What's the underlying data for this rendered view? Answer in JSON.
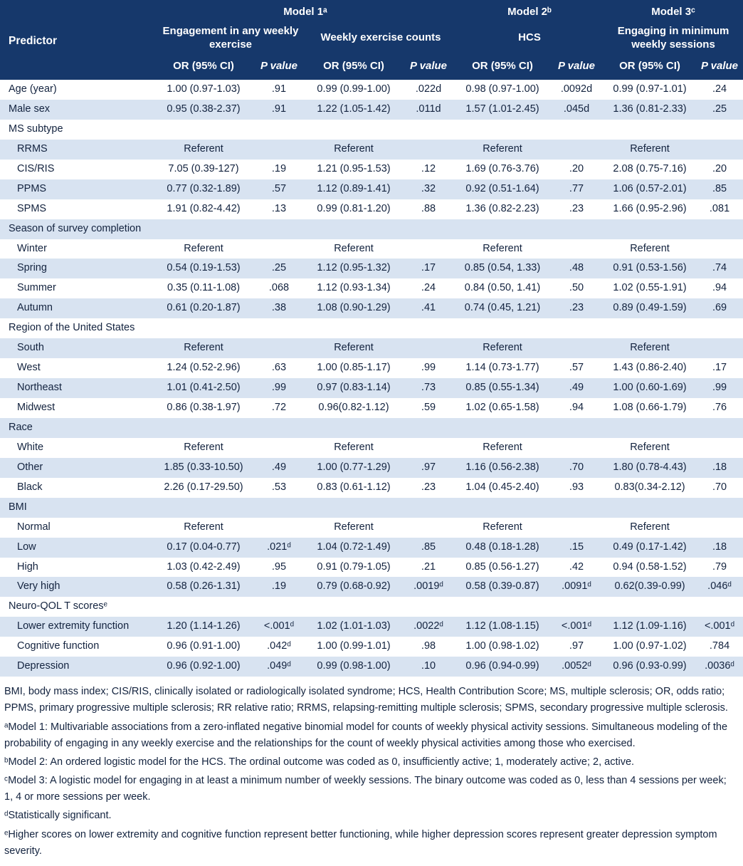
{
  "table": {
    "header": {
      "predictor_label": "Predictor",
      "models": [
        "Model 1ᵃ",
        "Model 2ᵇ",
        "Model 3ᶜ"
      ],
      "outcomes": [
        "Engagement in any weekly exercise",
        "Weekly exercise counts",
        "HCS",
        "Engaging in minimum weekly sessions"
      ],
      "or_label": "OR (95% CI)",
      "p_label": "P value"
    },
    "rows": [
      {
        "label": "Age (year)",
        "section": false,
        "indent": false,
        "cells": [
          "1.00 (0.97-1.03)",
          ".91",
          "0.99 (0.99-1.00)",
          ".022d",
          "0.98 (0.97-1.00)",
          ".0092d",
          "0.99 (0.97-1.01)",
          ".24"
        ]
      },
      {
        "label": "Male sex",
        "section": false,
        "indent": false,
        "cells": [
          "0.95 (0.38-2.37)",
          ".91",
          "1.22 (1.05-1.42)",
          ".011d",
          "1.57 (1.01-2.45)",
          ".045d",
          "1.36 (0.81-2.33)",
          ".25"
        ]
      },
      {
        "label": "MS subtype",
        "section": true,
        "indent": false,
        "cells": null
      },
      {
        "label": "RRMS",
        "section": false,
        "indent": true,
        "cells": [
          "Referent",
          "",
          "Referent",
          "",
          "Referent",
          "",
          "Referent",
          ""
        ]
      },
      {
        "label": "CIS/RIS",
        "section": false,
        "indent": true,
        "cells": [
          "7.05 (0.39-127)",
          ".19",
          "1.21 (0.95-1.53)",
          ".12",
          "1.69 (0.76-3.76)",
          ".20",
          "2.08 (0.75-7.16)",
          ".20"
        ]
      },
      {
        "label": "PPMS",
        "section": false,
        "indent": true,
        "cells": [
          "0.77 (0.32-1.89)",
          ".57",
          "1.12 (0.89-1.41)",
          ".32",
          "0.92 (0.51-1.64)",
          ".77",
          "1.06 (0.57-2.01)",
          ".85"
        ]
      },
      {
        "label": "SPMS",
        "section": false,
        "indent": true,
        "cells": [
          "1.91 (0.82-4.42)",
          ".13",
          "0.99 (0.81-1.20)",
          ".88",
          "1.36 (0.82-2.23)",
          ".23",
          "1.66 (0.95-2.96)",
          ".081"
        ]
      },
      {
        "label": "Season of survey completion",
        "section": true,
        "indent": false,
        "cells": null
      },
      {
        "label": "Winter",
        "section": false,
        "indent": true,
        "cells": [
          "Referent",
          "",
          "Referent",
          "",
          "Referent",
          "",
          "Referent",
          ""
        ]
      },
      {
        "label": "Spring",
        "section": false,
        "indent": true,
        "cells": [
          "0.54 (0.19-1.53)",
          ".25",
          "1.12 (0.95-1.32)",
          ".17",
          "0.85 (0.54, 1.33)",
          ".48",
          "0.91 (0.53-1.56)",
          ".74"
        ]
      },
      {
        "label": "Summer",
        "section": false,
        "indent": true,
        "cells": [
          "0.35 (0.11-1.08)",
          ".068",
          "1.12 (0.93-1.34)",
          ".24",
          "0.84 (0.50, 1.41)",
          ".50",
          "1.02 (0.55-1.91)",
          ".94"
        ]
      },
      {
        "label": "Autumn",
        "section": false,
        "indent": true,
        "cells": [
          "0.61 (0.20-1.87)",
          ".38",
          "1.08 (0.90-1.29)",
          ".41",
          "0.74 (0.45, 1.21)",
          ".23",
          "0.89 (0.49-1.59)",
          ".69"
        ]
      },
      {
        "label": "Region of the United States",
        "section": true,
        "indent": false,
        "cells": null
      },
      {
        "label": "South",
        "section": false,
        "indent": true,
        "cells": [
          "Referent",
          "",
          "Referent",
          "",
          "Referent",
          "",
          "Referent",
          ""
        ]
      },
      {
        "label": "West",
        "section": false,
        "indent": true,
        "cells": [
          "1.24 (0.52-2.96)",
          ".63",
          "1.00 (0.85-1.17)",
          ".99",
          "1.14 (0.73-1.77)",
          ".57",
          "1.43 (0.86-2.40)",
          ".17"
        ]
      },
      {
        "label": "Northeast",
        "section": false,
        "indent": true,
        "cells": [
          "1.01 (0.41-2.50)",
          ".99",
          "0.97 (0.83-1.14)",
          ".73",
          "0.85 (0.55-1.34)",
          ".49",
          "1.00 (0.60-1.69)",
          ".99"
        ]
      },
      {
        "label": "Midwest",
        "section": false,
        "indent": true,
        "cells": [
          "0.86 (0.38-1.97)",
          ".72",
          "0.96(0.82-1.12)",
          ".59",
          "1.02 (0.65-1.58)",
          ".94",
          "1.08 (0.66-1.79)",
          ".76"
        ]
      },
      {
        "label": "Race",
        "section": true,
        "indent": false,
        "cells": null
      },
      {
        "label": "White",
        "section": false,
        "indent": true,
        "cells": [
          "Referent",
          "",
          "Referent",
          "",
          "Referent",
          "",
          "Referent",
          ""
        ]
      },
      {
        "label": "Other",
        "section": false,
        "indent": true,
        "cells": [
          "1.85 (0.33-10.50)",
          ".49",
          "1.00 (0.77-1.29)",
          ".97",
          "1.16 (0.56-2.38)",
          ".70",
          "1.80 (0.78-4.43)",
          ".18"
        ]
      },
      {
        "label": "Black",
        "section": false,
        "indent": true,
        "cells": [
          "2.26 (0.17-29.50)",
          ".53",
          "0.83 (0.61-1.12)",
          ".23",
          "1.04 (0.45-2.40)",
          ".93",
          "0.83(0.34-2.12)",
          ".70"
        ]
      },
      {
        "label": "BMI",
        "section": true,
        "indent": false,
        "cells": null
      },
      {
        "label": "Normal",
        "section": false,
        "indent": true,
        "cells": [
          "Referent",
          "",
          "Referent",
          "",
          "Referent",
          "",
          "Referent",
          ""
        ]
      },
      {
        "label": "Low",
        "section": false,
        "indent": true,
        "cells": [
          "0.17 (0.04-0.77)",
          ".021ᵈ",
          "1.04 (0.72-1.49)",
          ".85",
          "0.48 (0.18-1.28)",
          ".15",
          "0.49 (0.17-1.42)",
          ".18"
        ]
      },
      {
        "label": "High",
        "section": false,
        "indent": true,
        "cells": [
          "1.03 (0.42-2.49)",
          ".95",
          "0.91 (0.79-1.05)",
          ".21",
          "0.85 (0.56-1.27)",
          ".42",
          "0.94 (0.58-1.52)",
          ".79"
        ]
      },
      {
        "label": "Very high",
        "section": false,
        "indent": true,
        "cells": [
          "0.58 (0.26-1.31)",
          ".19",
          "0.79 (0.68-0.92)",
          ".0019ᵈ",
          "0.58 (0.39-0.87)",
          ".0091ᵈ",
          "0.62(0.39-0.99)",
          ".046ᵈ"
        ]
      },
      {
        "label": "Neuro-QOL T scoresᵉ",
        "section": true,
        "indent": false,
        "cells": null
      },
      {
        "label": "Lower extremity function",
        "section": false,
        "indent": true,
        "cells": [
          "1.20 (1.14-1.26)",
          "<.001ᵈ",
          "1.02 (1.01-1.03)",
          ".0022ᵈ",
          "1.12 (1.08-1.15)",
          "<.001ᵈ",
          "1.12 (1.09-1.16)",
          "<.001ᵈ"
        ]
      },
      {
        "label": "Cognitive function",
        "section": false,
        "indent": true,
        "cells": [
          "0.96 (0.91-1.00)",
          ".042ᵈ",
          "1.00 (0.99-1.01)",
          ".98",
          "1.00 (0.98-1.02)",
          ".97",
          "1.00 (0.97-1.02)",
          ".784"
        ]
      },
      {
        "label": "Depression",
        "section": false,
        "indent": true,
        "cells": [
          "0.96 (0.92-1.00)",
          ".049ᵈ",
          "0.99 (0.98-1.00)",
          ".10",
          "0.96 (0.94-0.99)",
          ".0052ᵈ",
          "0.96 (0.93-0.99)",
          ".0036ᵈ"
        ]
      }
    ]
  },
  "footnotes": [
    "BMI, body mass index; CIS/RIS, clinically isolated or radiologically isolated syndrome; HCS, Health Contribution Score; MS, multiple sclerosis; OR, odds ratio; PPMS, primary progressive multiple sclerosis; RR relative ratio; RRMS, relapsing-remitting multiple sclerosis; SPMS, secondary progressive multiple sclerosis.",
    "ᵃModel 1: Multivariable associations from a zero-inflated negative binomial model for counts of weekly physical activity sessions. Simultaneous modeling of the probability of engaging in any weekly exercise and the relationships for the count of weekly physical activities among those who exercised.",
    "ᵇModel 2: An ordered logistic model for the HCS. The ordinal outcome was coded as 0, insufficiently active; 1, moderately active; 2, active.",
    "ᶜModel 3: A logistic model for engaging in at least a minimum number of weekly sessions. The binary outcome was coded as 0, less than 4 sessions per week; 1, 4 or more sessions per week.",
    "ᵈStatistically significant.",
    "ᵉHigher scores on lower extremity and cognitive function represent better functioning, while higher depression scores represent greater depression symptom severity."
  ],
  "colors": {
    "header_bg": "#16386b",
    "alt_row_bg": "#d8e3f1",
    "text": "#13233f"
  }
}
